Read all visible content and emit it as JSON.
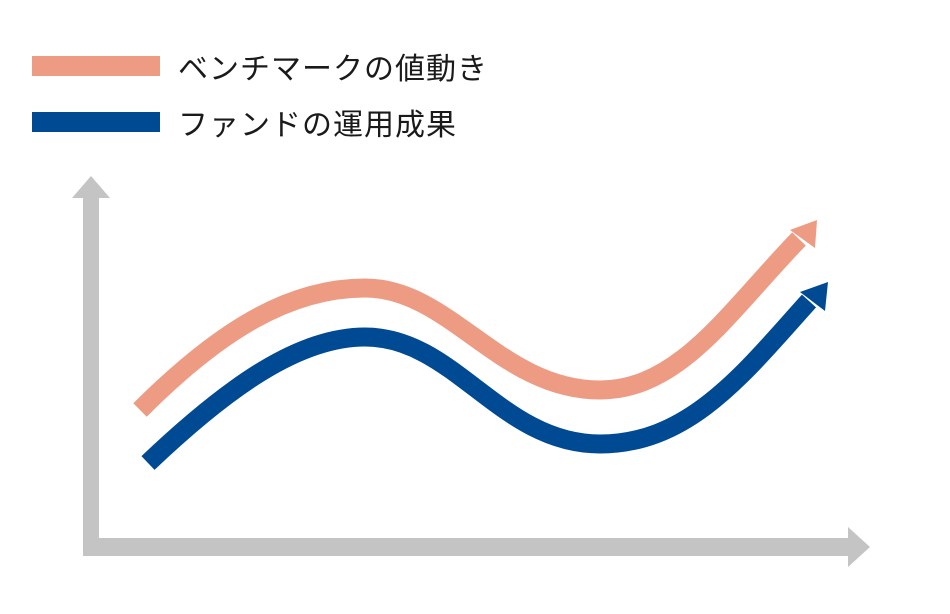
{
  "legend": [
    {
      "label": "ベンチマークの値動き",
      "color": "#EE9B84"
    },
    {
      "label": "ファンドの運用成果",
      "color": "#004A93"
    }
  ],
  "colors": {
    "axis": "#C4C4C4",
    "benchmark": "#EE9B84",
    "fund": "#004A93"
  }
}
